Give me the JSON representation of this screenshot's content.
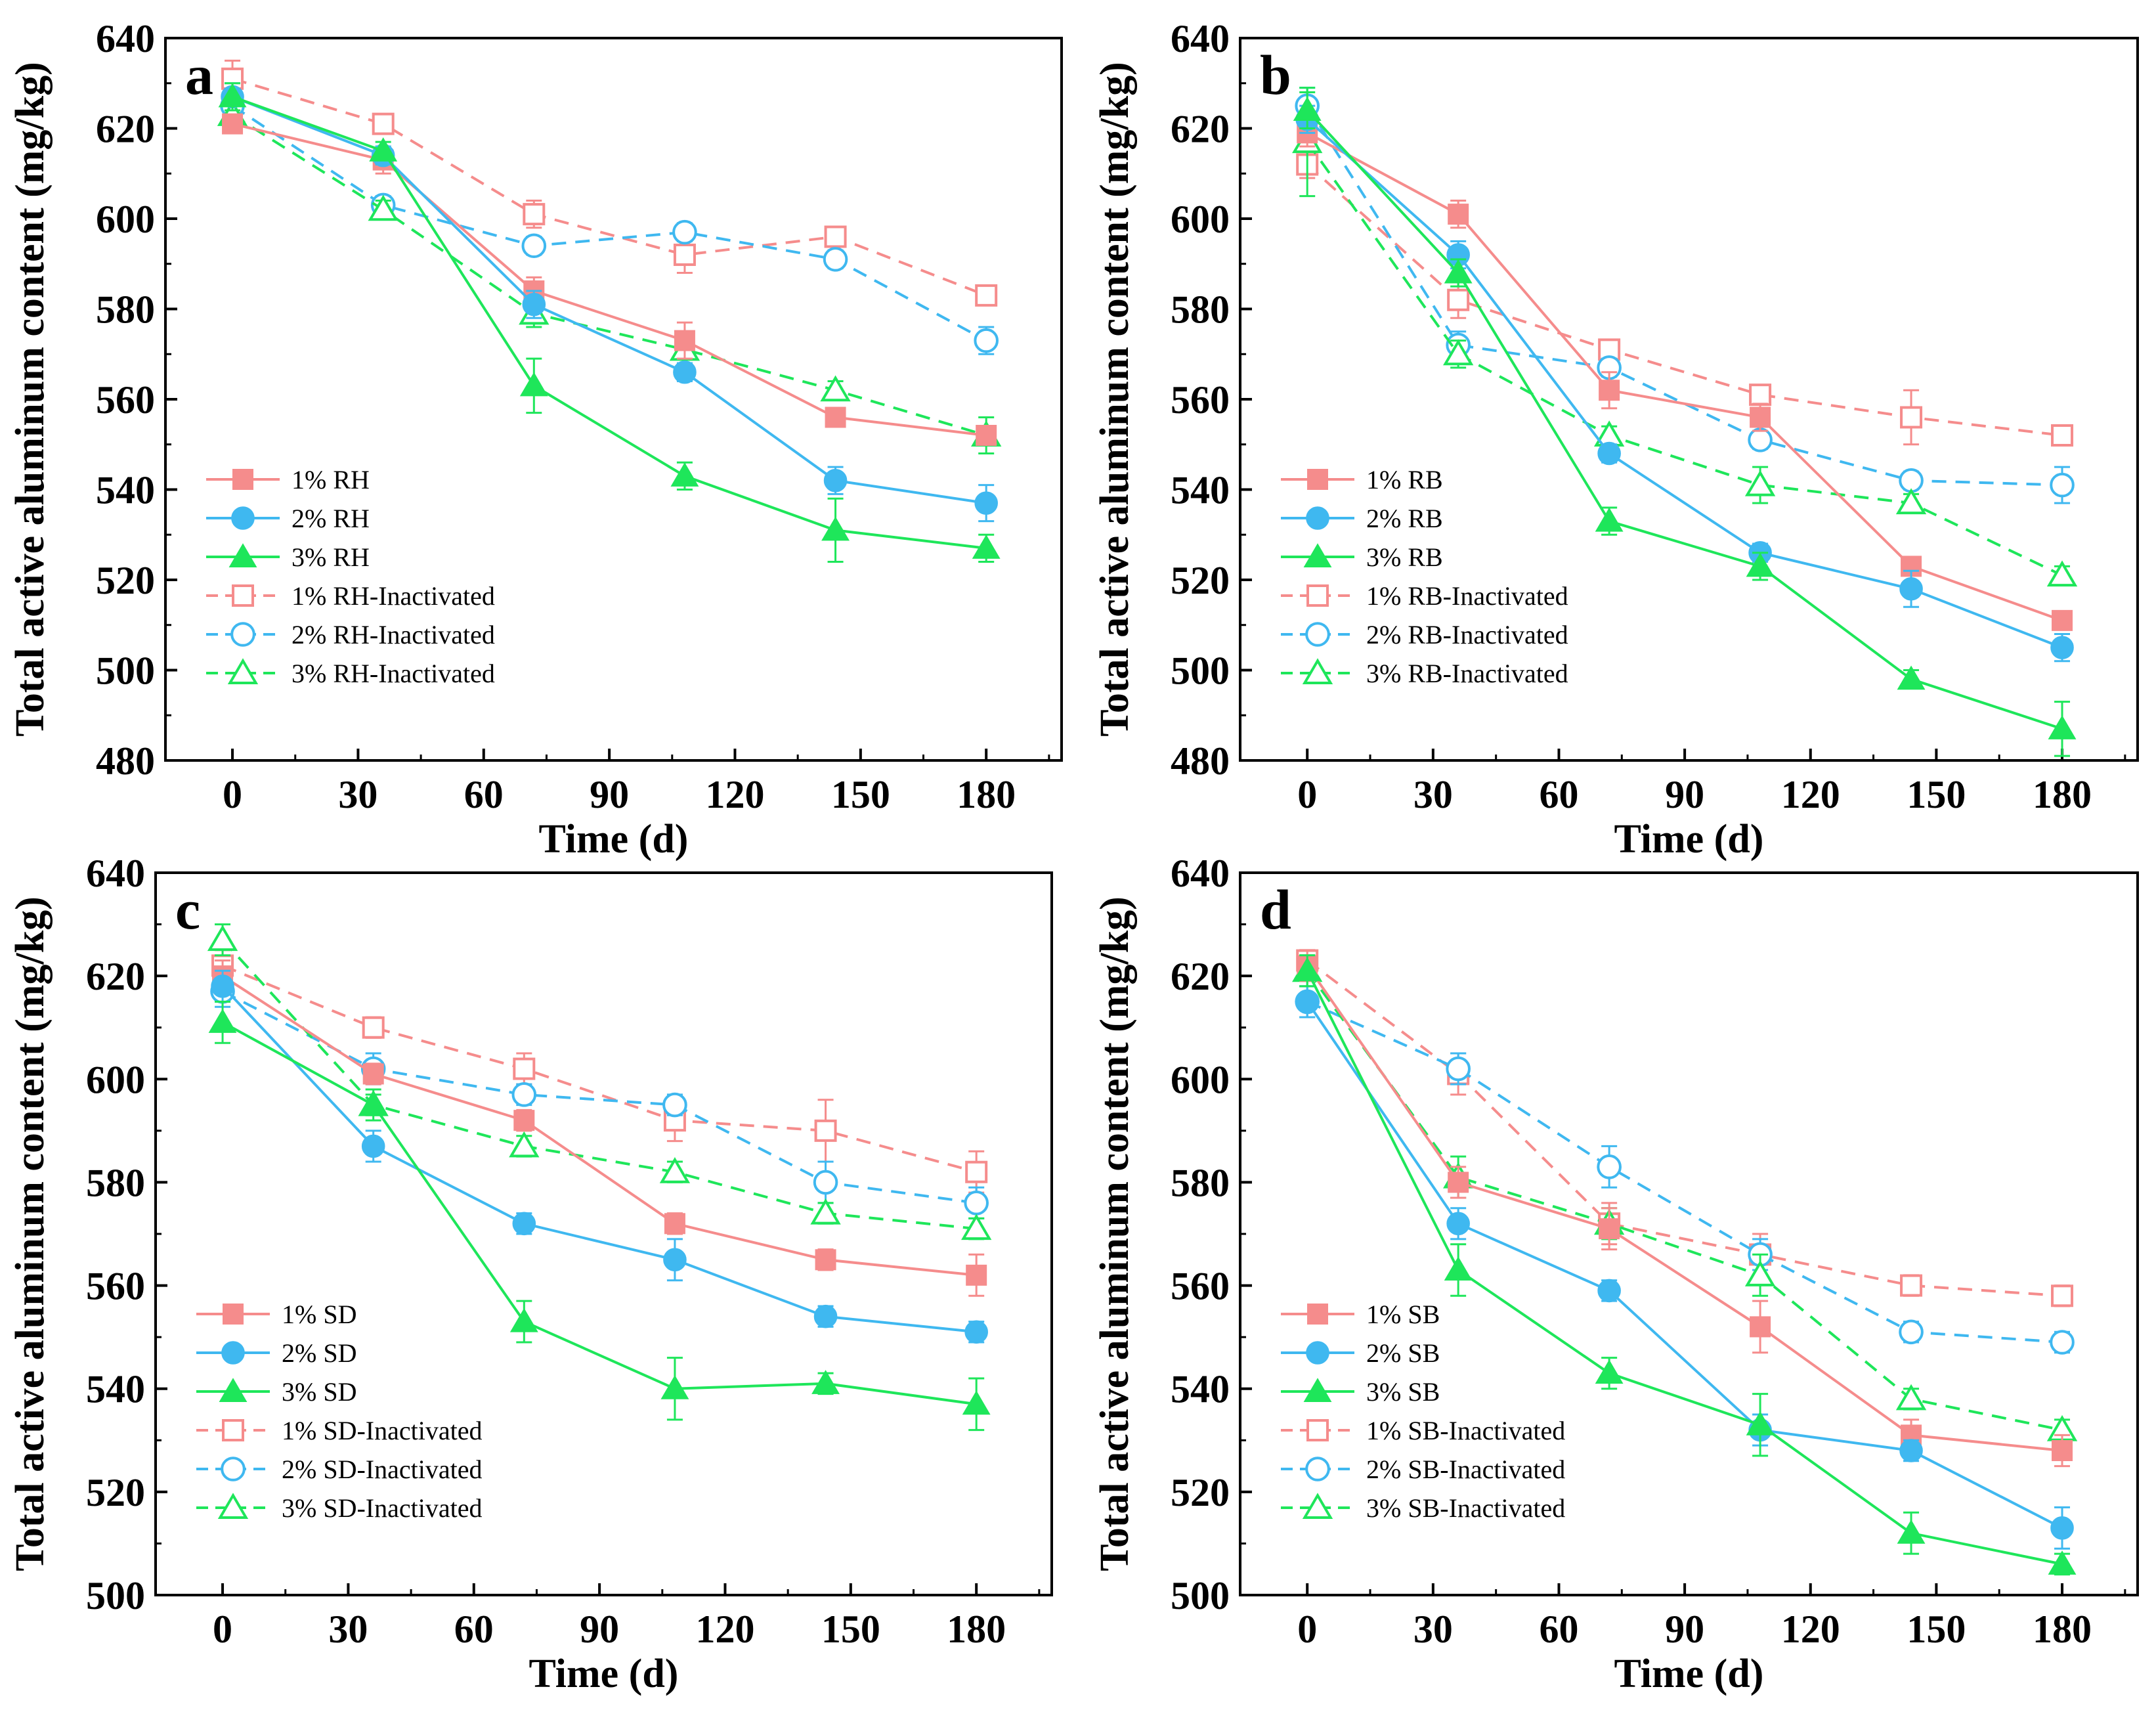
{
  "figure": {
    "panels_count": 4,
    "colors": {
      "pink": "#F58C8C",
      "blue": "#3FB8F0",
      "green": "#1EE65A"
    }
  },
  "chart_data": [
    {
      "type": "line",
      "panel_label": "a",
      "title": "",
      "xlabel": "Time (d)",
      "ylabel": "Total active aluminum content (mg/kg)",
      "xlim": [
        -16,
        198
      ],
      "ylim": [
        480,
        640
      ],
      "xticks": [
        0,
        30,
        60,
        90,
        120,
        150,
        180
      ],
      "yticks": [
        480,
        500,
        520,
        540,
        560,
        580,
        600,
        620,
        640
      ],
      "x": [
        0,
        36,
        72,
        108,
        144,
        180
      ],
      "legend_position": "bottom-left",
      "series": [
        {
          "name": "1% RH",
          "color": "#F58C8C",
          "marker": "square",
          "filled": true,
          "dashed": false,
          "values": [
            621,
            613,
            584,
            573,
            556,
            552
          ],
          "errors": [
            2,
            3,
            3,
            4,
            2,
            2
          ]
        },
        {
          "name": "2% RH",
          "color": "#3FB8F0",
          "marker": "circle",
          "filled": true,
          "dashed": false,
          "values": [
            627,
            614,
            581,
            566,
            542,
            537
          ],
          "errors": [
            3,
            2,
            3,
            2,
            3,
            4
          ]
        },
        {
          "name": "3% RH",
          "color": "#1EE65A",
          "marker": "triangle",
          "filled": true,
          "dashed": false,
          "values": [
            627,
            615,
            563,
            543,
            531,
            527
          ],
          "errors": [
            3,
            2,
            6,
            3,
            7,
            3
          ]
        },
        {
          "name": "1% RH-Inactivated",
          "color": "#F58C8C",
          "marker": "square",
          "filled": false,
          "dashed": true,
          "values": [
            631,
            621,
            601,
            592,
            596,
            583
          ],
          "errors": [
            4,
            2,
            3,
            4,
            2,
            2
          ]
        },
        {
          "name": "2% RH-Inactivated",
          "color": "#3FB8F0",
          "marker": "circle",
          "filled": false,
          "dashed": true,
          "values": [
            625,
            603,
            594,
            597,
            591,
            573
          ],
          "errors": [
            3,
            2,
            2,
            2,
            2,
            3
          ]
        },
        {
          "name": "3% RH-Inactivated",
          "color": "#1EE65A",
          "marker": "triangle",
          "filled": false,
          "dashed": true,
          "values": [
            623,
            602,
            579,
            571,
            562,
            552
          ],
          "errors": [
            3,
            2,
            3,
            2,
            2,
            4
          ]
        }
      ]
    },
    {
      "type": "line",
      "panel_label": "b",
      "title": "",
      "xlabel": "Time (d)",
      "ylabel": "Total active aluminum content (mg/kg)",
      "xlim": [
        -16,
        198
      ],
      "ylim": [
        480,
        640
      ],
      "xticks": [
        0,
        30,
        60,
        90,
        120,
        150,
        180
      ],
      "yticks": [
        480,
        500,
        520,
        540,
        560,
        580,
        600,
        620,
        640
      ],
      "x": [
        0,
        36,
        72,
        108,
        144,
        180
      ],
      "legend_position": "bottom-left",
      "series": [
        {
          "name": "1% RB",
          "color": "#F58C8C",
          "marker": "square",
          "filled": true,
          "dashed": false,
          "values": [
            619,
            601,
            562,
            556,
            523,
            511
          ],
          "errors": [
            3,
            3,
            4,
            3,
            2,
            2
          ]
        },
        {
          "name": "2% RB",
          "color": "#3FB8F0",
          "marker": "circle",
          "filled": true,
          "dashed": false,
          "values": [
            622,
            592,
            548,
            526,
            518,
            505
          ],
          "errors": [
            3,
            3,
            2,
            2,
            4,
            3
          ]
        },
        {
          "name": "3% RB",
          "color": "#1EE65A",
          "marker": "triangle",
          "filled": true,
          "dashed": false,
          "values": [
            624,
            588,
            533,
            523,
            498,
            487
          ],
          "errors": [
            4,
            3,
            3,
            3,
            2,
            6
          ]
        },
        {
          "name": "1% RB-Inactivated",
          "color": "#F58C8C",
          "marker": "square",
          "filled": false,
          "dashed": true,
          "values": [
            612,
            582,
            571,
            561,
            556,
            552
          ],
          "errors": [
            3,
            4,
            2,
            2,
            6,
            2
          ]
        },
        {
          "name": "2% RB-Inactivated",
          "color": "#3FB8F0",
          "marker": "circle",
          "filled": false,
          "dashed": true,
          "values": [
            625,
            572,
            567,
            551,
            542,
            541
          ],
          "errors": [
            4,
            3,
            2,
            2,
            2,
            4
          ]
        },
        {
          "name": "3% RB-Inactivated",
          "color": "#1EE65A",
          "marker": "triangle",
          "filled": false,
          "dashed": true,
          "values": [
            617,
            570,
            552,
            541,
            537,
            521
          ],
          "errors": [
            12,
            3,
            2,
            4,
            2,
            2
          ]
        }
      ]
    },
    {
      "type": "line",
      "panel_label": "c",
      "title": "",
      "xlabel": "Time (d)",
      "ylabel": "Total active aluminum content (mg/kg)",
      "xlim": [
        -16,
        198
      ],
      "ylim": [
        500,
        640
      ],
      "xticks": [
        0,
        30,
        60,
        90,
        120,
        150,
        180
      ],
      "yticks": [
        500,
        520,
        540,
        560,
        580,
        600,
        620,
        640
      ],
      "x": [
        0,
        36,
        72,
        108,
        144,
        180
      ],
      "legend_position": "bottom-left",
      "series": [
        {
          "name": "1% SD",
          "color": "#F58C8C",
          "marker": "square",
          "filled": true,
          "dashed": false,
          "values": [
            620,
            601,
            592,
            572,
            565,
            562
          ],
          "errors": [
            3,
            2,
            2,
            2,
            2,
            4
          ]
        },
        {
          "name": "2% SD",
          "color": "#3FB8F0",
          "marker": "circle",
          "filled": true,
          "dashed": false,
          "values": [
            618,
            587,
            572,
            565,
            554,
            551
          ],
          "errors": [
            3,
            3,
            2,
            4,
            2,
            2
          ]
        },
        {
          "name": "3% SD",
          "color": "#1EE65A",
          "marker": "triangle",
          "filled": true,
          "dashed": false,
          "values": [
            611,
            595,
            553,
            540,
            541,
            537
          ],
          "errors": [
            4,
            3,
            4,
            6,
            2,
            5
          ]
        },
        {
          "name": "1% SD-Inactivated",
          "color": "#F58C8C",
          "marker": "square",
          "filled": false,
          "dashed": true,
          "values": [
            622,
            610,
            602,
            592,
            590,
            582
          ],
          "errors": [
            3,
            2,
            3,
            4,
            6,
            4
          ]
        },
        {
          "name": "2% SD-Inactivated",
          "color": "#3FB8F0",
          "marker": "circle",
          "filled": false,
          "dashed": true,
          "values": [
            617,
            602,
            597,
            595,
            580,
            576
          ],
          "errors": [
            3,
            3,
            2,
            2,
            4,
            3
          ]
        },
        {
          "name": "3% SD-Inactivated",
          "color": "#1EE65A",
          "marker": "triangle",
          "filled": false,
          "dashed": true,
          "values": [
            627,
            595,
            587,
            582,
            574,
            571
          ],
          "errors": [
            3,
            2,
            2,
            2,
            2,
            2
          ]
        }
      ]
    },
    {
      "type": "line",
      "panel_label": "d",
      "title": "",
      "xlabel": "Time (d)",
      "ylabel": "Total active aluminum content (mg/kg)",
      "xlim": [
        -16,
        198
      ],
      "ylim": [
        500,
        640
      ],
      "xticks": [
        0,
        30,
        60,
        90,
        120,
        150,
        180
      ],
      "yticks": [
        500,
        520,
        540,
        560,
        580,
        600,
        620,
        640
      ],
      "x": [
        0,
        36,
        72,
        108,
        144,
        180
      ],
      "legend_position": "bottom-left",
      "series": [
        {
          "name": "1% SB",
          "color": "#F58C8C",
          "marker": "square",
          "filled": true,
          "dashed": false,
          "values": [
            622,
            580,
            571,
            552,
            531,
            528
          ],
          "errors": [
            3,
            3,
            4,
            5,
            3,
            3
          ]
        },
        {
          "name": "2% SB",
          "color": "#3FB8F0",
          "marker": "circle",
          "filled": true,
          "dashed": false,
          "values": [
            615,
            572,
            559,
            532,
            528,
            513
          ],
          "errors": [
            3,
            3,
            2,
            3,
            2,
            4
          ]
        },
        {
          "name": "3% SB",
          "color": "#1EE65A",
          "marker": "triangle",
          "filled": true,
          "dashed": false,
          "values": [
            621,
            563,
            543,
            533,
            512,
            506
          ],
          "errors": [
            3,
            5,
            3,
            6,
            4,
            2
          ]
        },
        {
          "name": "1% SB-Inactivated",
          "color": "#F58C8C",
          "marker": "square",
          "filled": false,
          "dashed": true,
          "values": [
            623,
            601,
            572,
            566,
            560,
            558
          ],
          "errors": [
            2,
            4,
            4,
            4,
            2,
            2
          ]
        },
        {
          "name": "2% SB-Inactivated",
          "color": "#3FB8F0",
          "marker": "circle",
          "filled": false,
          "dashed": true,
          "values": [
            615,
            602,
            583,
            566,
            551,
            549
          ],
          "errors": [
            3,
            3,
            4,
            3,
            2,
            2
          ]
        },
        {
          "name": "3% SB-Inactivated",
          "color": "#1EE65A",
          "marker": "triangle",
          "filled": false,
          "dashed": true,
          "values": [
            621,
            581,
            572,
            562,
            538,
            532
          ],
          "errors": [
            3,
            4,
            3,
            4,
            2,
            2
          ]
        }
      ]
    }
  ]
}
